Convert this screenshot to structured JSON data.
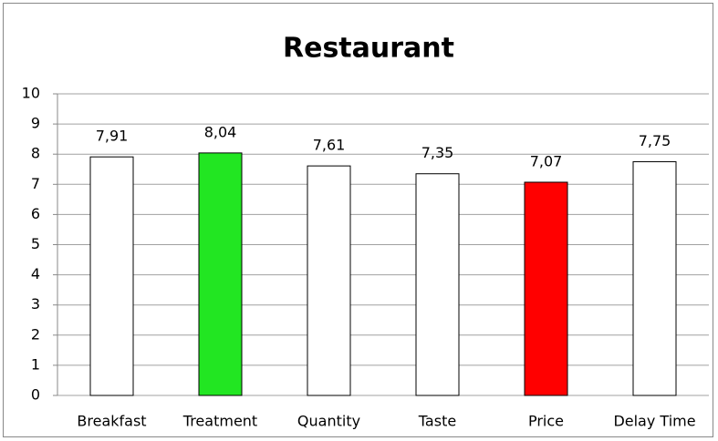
{
  "chart_data": {
    "type": "bar",
    "title": "Restaurant",
    "categories": [
      "Breakfast",
      "Treatment",
      "Quantity",
      "Taste",
      "Price",
      "Delay Time"
    ],
    "values": [
      7.91,
      8.04,
      7.61,
      7.35,
      7.07,
      7.75
    ],
    "value_labels": [
      "7,91",
      "8,04",
      "7,61",
      "7,35",
      "7,07",
      "7,75"
    ],
    "colors": [
      "#ffffff",
      "#22e622",
      "#ffffff",
      "#ffffff",
      "#ff0000",
      "#ffffff"
    ],
    "ylim": [
      0,
      10
    ],
    "yticks": [
      0,
      1,
      2,
      3,
      4,
      5,
      6,
      7,
      8,
      9,
      10
    ],
    "grid": true
  }
}
